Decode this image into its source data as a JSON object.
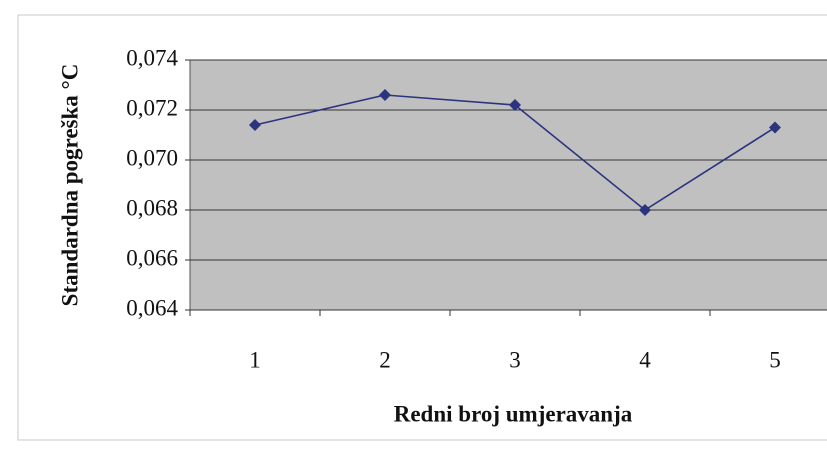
{
  "chart_data": {
    "type": "line",
    "x_label": "Redni broj umjeravanja",
    "y_label": "Standardna pogreška °C",
    "categories": [
      "1",
      "2",
      "3",
      "4",
      "5"
    ],
    "series": [
      {
        "name": null,
        "color": "#2b347f",
        "values": [
          0.0714,
          0.0726,
          0.0722,
          0.068,
          0.0713
        ]
      }
    ],
    "ylim": [
      0.064,
      0.074
    ],
    "yticks": [
      {
        "value": 0.064,
        "label": "0,064"
      },
      {
        "value": 0.066,
        "label": "0,066"
      },
      {
        "value": 0.068,
        "label": "0,068"
      },
      {
        "value": 0.07,
        "label": "0,070"
      },
      {
        "value": 0.072,
        "label": "0,072"
      },
      {
        "value": 0.074,
        "label": "0,074"
      }
    ],
    "grid": true,
    "plot_background": "#c0c0c0"
  }
}
